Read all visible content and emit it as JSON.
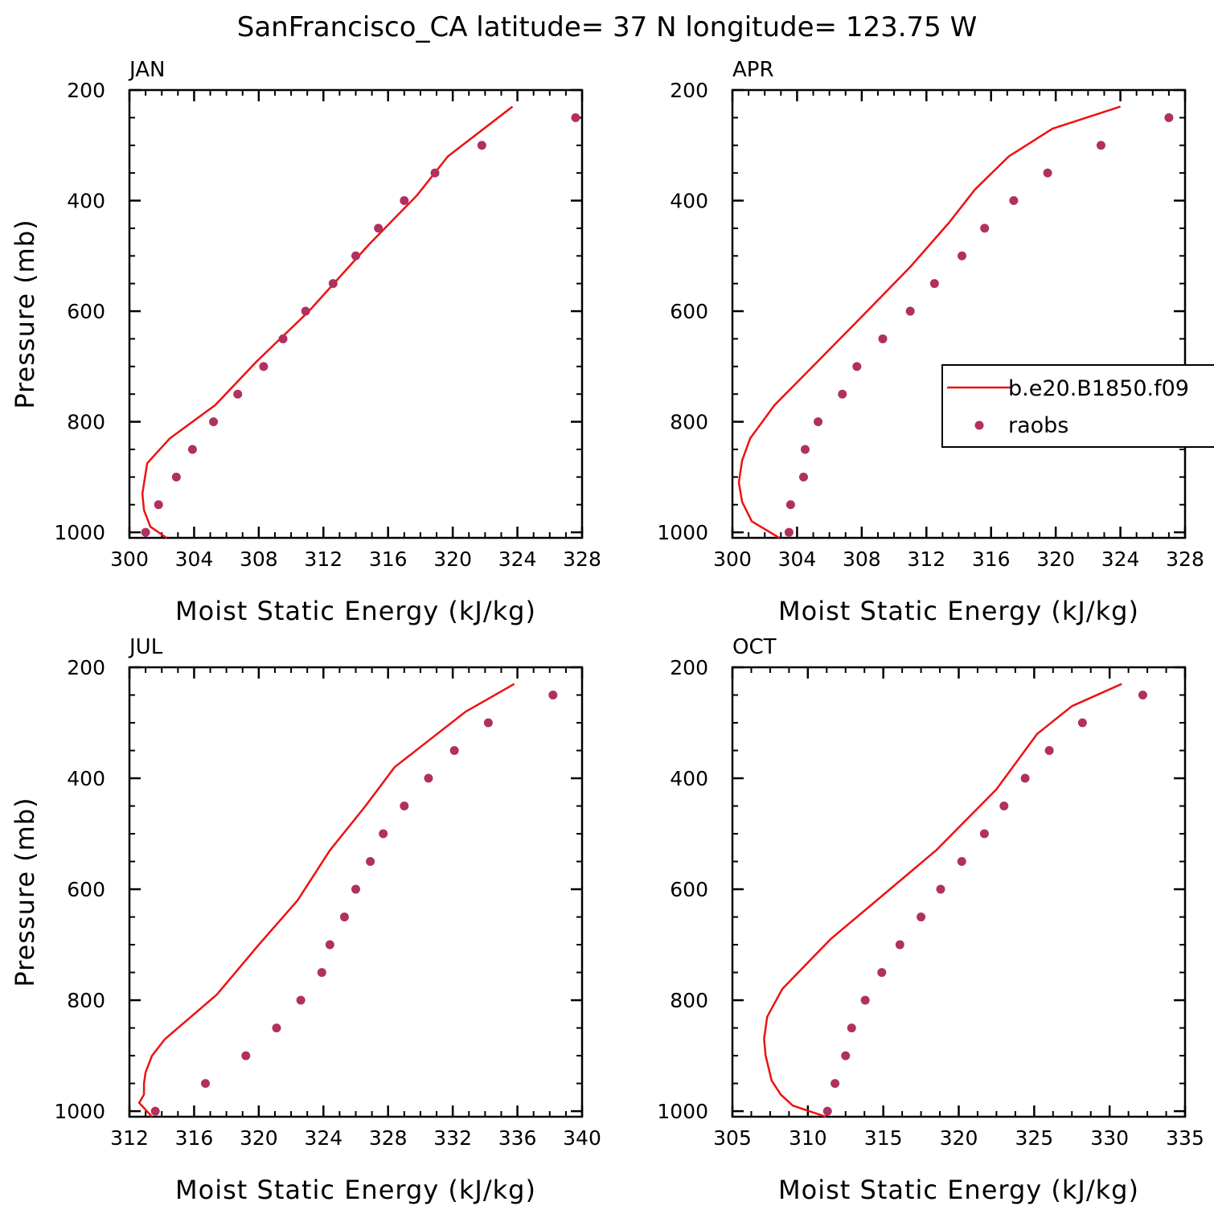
{
  "title": "SanFrancisco_CA  latitude= 37 N longitude= 123.75 W",
  "colors": {
    "model_line": "#ee1111",
    "obs_marker": "#b03060",
    "axes": "#000000"
  },
  "legend": {
    "entries": [
      {
        "label": "b.e20.B1850.f09",
        "style": "line"
      },
      {
        "label": "raobs",
        "style": "marker"
      }
    ]
  },
  "chart_data": [
    {
      "type": "line",
      "panel_title": "JAN",
      "xlabel": "Moist Static Energy (kJ/kg)",
      "ylabel": "Pressure (mb)",
      "xlim": [
        300,
        328
      ],
      "ylim": [
        1010,
        200
      ],
      "xticks": [
        300,
        304,
        308,
        312,
        316,
        320,
        324,
        328
      ],
      "yticks": [
        200,
        400,
        600,
        800,
        1000
      ],
      "series": [
        {
          "name": "b.e20.B1850.f09",
          "x": [
            302.3,
            301.3,
            300.9,
            300.8,
            301.1,
            302.5,
            305.3,
            307.9,
            311.1,
            314.8,
            317.8,
            319.7,
            323.7
          ],
          "y": [
            1010,
            990,
            960,
            930,
            875,
            830,
            770,
            690,
            600,
            480,
            390,
            320,
            230
          ]
        },
        {
          "name": "raobs",
          "x": [
            301.0,
            301.8,
            302.9,
            303.9,
            305.2,
            306.7,
            308.3,
            309.5,
            310.9,
            312.6,
            314.0,
            315.4,
            317.0,
            318.9,
            321.8,
            327.6
          ],
          "y": [
            1000,
            950,
            900,
            850,
            800,
            750,
            700,
            650,
            600,
            550,
            500,
            450,
            400,
            350,
            300,
            250
          ]
        }
      ]
    },
    {
      "type": "line",
      "panel_title": "APR",
      "xlabel": "Moist Static Energy (kJ/kg)",
      "ylabel": "",
      "xlim": [
        300,
        328
      ],
      "ylim": [
        1010,
        200
      ],
      "xticks": [
        300,
        304,
        308,
        312,
        316,
        320,
        324,
        328
      ],
      "yticks": [
        200,
        400,
        600,
        800,
        1000
      ],
      "series": [
        {
          "name": "b.e20.B1850.f09",
          "x": [
            302.9,
            301.2,
            300.6,
            300.4,
            300.6,
            301.1,
            302.6,
            305.3,
            308.0,
            311.0,
            313.4,
            315.0,
            317.1,
            319.8,
            324.0
          ],
          "y": [
            1010,
            980,
            945,
            910,
            870,
            830,
            770,
            690,
            610,
            520,
            440,
            380,
            320,
            270,
            230
          ]
        },
        {
          "name": "raobs",
          "x": [
            303.5,
            303.6,
            304.4,
            304.5,
            305.3,
            306.8,
            307.7,
            309.3,
            311.0,
            312.5,
            314.2,
            315.6,
            317.4,
            319.5,
            322.8,
            327.0
          ],
          "y": [
            1000,
            950,
            900,
            850,
            800,
            750,
            700,
            650,
            600,
            550,
            500,
            450,
            400,
            350,
            300,
            250
          ]
        }
      ]
    },
    {
      "type": "line",
      "panel_title": "JUL",
      "xlabel": "Moist Static Energy (kJ/kg)",
      "ylabel": "Pressure (mb)",
      "xlim": [
        312,
        340
      ],
      "ylim": [
        1010,
        200
      ],
      "xticks": [
        312,
        316,
        320,
        324,
        328,
        332,
        336,
        340
      ],
      "yticks": [
        200,
        400,
        600,
        800,
        1000
      ],
      "series": [
        {
          "name": "b.e20.B1850.f09",
          "x": [
            313.4,
            312.6,
            312.9,
            312.9,
            313.0,
            313.4,
            314.2,
            317.4,
            320.0,
            322.4,
            324.4,
            326.6,
            328.4,
            330.6,
            332.8,
            335.8
          ],
          "y": [
            1010,
            985,
            970,
            950,
            930,
            900,
            870,
            790,
            700,
            620,
            530,
            450,
            380,
            330,
            280,
            230
          ]
        },
        {
          "name": "raobs",
          "x": [
            313.6,
            316.7,
            319.2,
            321.1,
            322.6,
            323.9,
            324.4,
            325.3,
            326.0,
            326.9,
            327.7,
            329.0,
            330.5,
            332.1,
            334.2,
            338.2
          ],
          "y": [
            1000,
            950,
            900,
            850,
            800,
            750,
            700,
            650,
            600,
            550,
            500,
            450,
            400,
            350,
            300,
            250
          ]
        }
      ]
    },
    {
      "type": "line",
      "panel_title": "OCT",
      "xlabel": "Moist Static Energy (kJ/kg)",
      "ylabel": "",
      "xlim": [
        305,
        335
      ],
      "ylim": [
        1010,
        200
      ],
      "xticks": [
        305,
        310,
        315,
        320,
        325,
        330,
        335
      ],
      "yticks": [
        200,
        400,
        600,
        800,
        1000
      ],
      "series": [
        {
          "name": "b.e20.B1850.f09",
          "x": [
            311.2,
            309.0,
            308.2,
            307.6,
            307.2,
            307.1,
            307.3,
            308.3,
            311.5,
            315.0,
            318.5,
            322.5,
            325.2,
            327.5,
            330.8
          ],
          "y": [
            1010,
            990,
            970,
            945,
            900,
            870,
            830,
            780,
            690,
            610,
            530,
            420,
            320,
            270,
            230
          ]
        },
        {
          "name": "raobs",
          "x": [
            311.3,
            311.8,
            312.5,
            312.9,
            313.8,
            314.9,
            316.1,
            317.5,
            318.8,
            320.2,
            321.7,
            323.0,
            324.4,
            326.0,
            328.2,
            332.2
          ],
          "y": [
            1000,
            950,
            900,
            850,
            800,
            750,
            700,
            650,
            600,
            550,
            500,
            450,
            400,
            350,
            300,
            250
          ]
        }
      ]
    }
  ]
}
